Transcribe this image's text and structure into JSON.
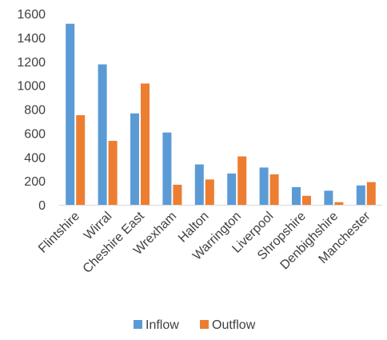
{
  "chart_data": {
    "type": "bar",
    "title": "",
    "xlabel": "",
    "ylabel": "",
    "categories": [
      "Flintshire",
      "Wirral",
      "Cheshire East",
      "Wrexham",
      "Halton",
      "Warrington",
      "Liverpool",
      "Shropshire",
      "Denbighshire",
      "Manchester"
    ],
    "series": [
      {
        "name": "Inflow",
        "color": "#5b9bd5",
        "values": [
          1515,
          1175,
          765,
          605,
          338,
          262,
          312,
          148,
          118,
          162
        ]
      },
      {
        "name": "Outflow",
        "color": "#ed7d31",
        "values": [
          750,
          535,
          1015,
          168,
          212,
          405,
          255,
          75,
          22,
          190
        ]
      }
    ],
    "ylim": [
      0,
      1600
    ],
    "yticks": [
      0,
      200,
      400,
      600,
      800,
      1000,
      1200,
      1400,
      1600
    ],
    "grid": false,
    "legend_position": "bottom"
  }
}
